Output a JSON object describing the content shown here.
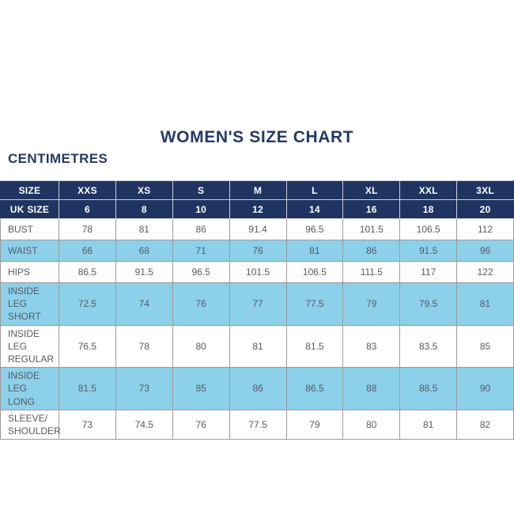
{
  "page": {
    "title": "WOMEN'S SIZE CHART",
    "unit_label": "CENTIMETRES"
  },
  "colors": {
    "navy_header": "#1f3460",
    "title_text": "#243a66",
    "row_blue": "#8dd0ea",
    "row_white": "#ffffff",
    "body_text": "#565a63",
    "grid_border": "#9b9b9b"
  },
  "chart_data": {
    "type": "table",
    "title": "WOMEN'S SIZE CHART",
    "units": "CENTIMETRES",
    "columns": [
      "SIZE",
      "XXS",
      "XS",
      "S",
      "M",
      "L",
      "XL",
      "XXL",
      "3XL"
    ],
    "uk_size_row": {
      "label": "UK SIZE",
      "values": [
        "6",
        "8",
        "10",
        "12",
        "14",
        "16",
        "18",
        "20"
      ]
    },
    "rows": [
      {
        "label": "BUST",
        "shade": "white",
        "values": [
          "78",
          "81",
          "86",
          "91.4",
          "96.5",
          "101.5",
          "106.5",
          "112"
        ]
      },
      {
        "label": "WAIST",
        "shade": "blue",
        "values": [
          "66",
          "68",
          "71",
          "76",
          "81",
          "86",
          "91.5",
          "96"
        ]
      },
      {
        "label": "HIPS",
        "shade": "white",
        "values": [
          "86.5",
          "91.5",
          "96.5",
          "101.5",
          "106.5",
          "111.5",
          "117",
          "122"
        ]
      },
      {
        "label": "INSIDE LEG SHORT",
        "shade": "blue",
        "values": [
          "72.5",
          "74",
          "76",
          "77",
          "77.5",
          "79",
          "79.5",
          "81"
        ]
      },
      {
        "label": "INSIDE LEG REGULAR",
        "shade": "white",
        "values": [
          "76.5",
          "78",
          "80",
          "81",
          "81.5",
          "83",
          "83.5",
          "85"
        ]
      },
      {
        "label": "INSIDE LEG LONG",
        "shade": "blue",
        "values": [
          "81.5",
          "73",
          "85",
          "86",
          "86.5",
          "88",
          "88.5",
          "90"
        ]
      },
      {
        "label": "SLEEVE/ SHOULDER",
        "shade": "white",
        "values": [
          "73",
          "74.5",
          "76",
          "77.5",
          "79",
          "80",
          "81",
          "82"
        ]
      }
    ]
  }
}
